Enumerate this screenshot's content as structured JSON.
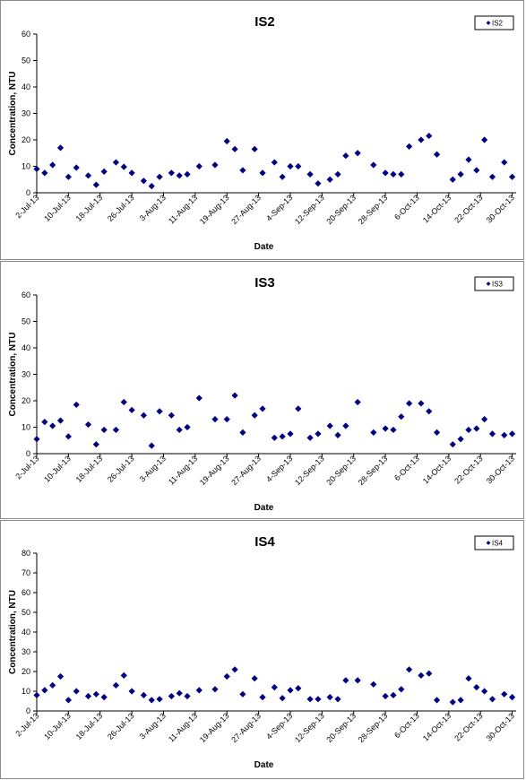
{
  "chart_data": [
    {
      "type": "scatter",
      "title": "IS2",
      "xlabel": "Date",
      "ylabel": "Concentration, NTU",
      "ylim": [
        0,
        60
      ],
      "yticks": [
        0,
        10,
        20,
        30,
        40,
        50,
        60
      ],
      "xlim": [
        "2013-07-02",
        "2013-10-31"
      ],
      "xticks": [
        "2-Jul-13",
        "10-Jul-13",
        "18-Jul-13",
        "26-Jul-13",
        "3-Aug-13",
        "11-Aug-13",
        "19-Aug-13",
        "27-Aug-13",
        "4-Sep-13",
        "12-Sep-13",
        "20-Sep-13",
        "28-Sep-13",
        "6-Oct-13",
        "14-Oct-13",
        "22-Oct-13",
        "30-Oct-13"
      ],
      "grid": false,
      "legend": "top-right",
      "marker_color": "#000080",
      "series": [
        {
          "name": "IS2",
          "x": [
            "2013-07-02",
            "2013-07-04",
            "2013-07-06",
            "2013-07-08",
            "2013-07-10",
            "2013-07-12",
            "2013-07-15",
            "2013-07-17",
            "2013-07-19",
            "2013-07-22",
            "2013-07-24",
            "2013-07-26",
            "2013-07-29",
            "2013-07-31",
            "2013-08-02",
            "2013-08-05",
            "2013-08-07",
            "2013-08-09",
            "2013-08-12",
            "2013-08-16",
            "2013-08-19",
            "2013-08-21",
            "2013-08-23",
            "2013-08-26",
            "2013-08-28",
            "2013-08-31",
            "2013-09-02",
            "2013-09-04",
            "2013-09-06",
            "2013-09-09",
            "2013-09-11",
            "2013-09-14",
            "2013-09-16",
            "2013-09-18",
            "2013-09-21",
            "2013-09-25",
            "2013-09-28",
            "2013-09-30",
            "2013-10-02",
            "2013-10-04",
            "2013-10-07",
            "2013-10-09",
            "2013-10-11",
            "2013-10-15",
            "2013-10-17",
            "2013-10-19",
            "2013-10-21",
            "2013-10-23",
            "2013-10-25",
            "2013-10-28",
            "2013-10-30"
          ],
          "y": [
            9,
            7.5,
            10.5,
            17,
            6,
            9.5,
            6.5,
            3,
            8,
            11.5,
            9.8,
            7.5,
            4.5,
            2.5,
            6,
            7.5,
            6.5,
            7,
            10,
            10.5,
            19.5,
            16.5,
            8.5,
            16.5,
            7.5,
            11.5,
            6,
            10,
            10,
            7,
            3.5,
            5,
            7,
            14,
            15,
            10.5,
            7.5,
            7,
            7,
            17.5,
            20,
            21.5,
            14.5,
            5,
            7,
            12.5,
            8.5,
            20,
            6,
            11.5,
            6
          ]
        }
      ]
    },
    {
      "type": "scatter",
      "title": "IS3",
      "xlabel": "Date",
      "ylabel": "Concentration, NTU",
      "ylim": [
        0,
        60
      ],
      "yticks": [
        0,
        10,
        20,
        30,
        40,
        50,
        60
      ],
      "xlim": [
        "2013-07-02",
        "2013-10-31"
      ],
      "xticks": [
        "2-Jul-13",
        "10-Jul-13",
        "18-Jul-13",
        "26-Jul-13",
        "3-Aug-13",
        "11-Aug-13",
        "19-Aug-13",
        "27-Aug-13",
        "4-Sep-13",
        "12-Sep-13",
        "20-Sep-13",
        "28-Sep-13",
        "6-Oct-13",
        "14-Oct-13",
        "22-Oct-13",
        "30-Oct-13"
      ],
      "grid": false,
      "legend": "top-right",
      "marker_color": "#000080",
      "series": [
        {
          "name": "IS3",
          "x": [
            "2013-07-02",
            "2013-07-04",
            "2013-07-06",
            "2013-07-08",
            "2013-07-10",
            "2013-07-12",
            "2013-07-15",
            "2013-07-17",
            "2013-07-19",
            "2013-07-22",
            "2013-07-24",
            "2013-07-26",
            "2013-07-29",
            "2013-07-31",
            "2013-08-02",
            "2013-08-05",
            "2013-08-07",
            "2013-08-09",
            "2013-08-12",
            "2013-08-16",
            "2013-08-19",
            "2013-08-21",
            "2013-08-23",
            "2013-08-26",
            "2013-08-28",
            "2013-08-31",
            "2013-09-02",
            "2013-09-04",
            "2013-09-06",
            "2013-09-09",
            "2013-09-11",
            "2013-09-14",
            "2013-09-16",
            "2013-09-18",
            "2013-09-21",
            "2013-09-25",
            "2013-09-28",
            "2013-09-30",
            "2013-10-02",
            "2013-10-04",
            "2013-10-07",
            "2013-10-09",
            "2013-10-11",
            "2013-10-15",
            "2013-10-17",
            "2013-10-19",
            "2013-10-21",
            "2013-10-23",
            "2013-10-25",
            "2013-10-28",
            "2013-10-30"
          ],
          "y": [
            5.5,
            12,
            10.5,
            12.5,
            6.5,
            18.5,
            11,
            3.5,
            9,
            9,
            19.5,
            16.5,
            14.5,
            3,
            16,
            14.5,
            9,
            10,
            21,
            13,
            13,
            22,
            8,
            14.5,
            17,
            6,
            6.5,
            7.5,
            17,
            6,
            7.5,
            10.5,
            7,
            10.5,
            19.5,
            8,
            9.5,
            9,
            14,
            19,
            19,
            16,
            8,
            3.5,
            5.5,
            9,
            9.5,
            13,
            7.5,
            7,
            7.5
          ]
        }
      ]
    },
    {
      "type": "scatter",
      "title": "IS4",
      "xlabel": "Date",
      "ylabel": "Concentration, NTU",
      "ylim": [
        0,
        80
      ],
      "yticks": [
        0,
        10,
        20,
        30,
        40,
        50,
        60,
        70,
        80
      ],
      "xlim": [
        "2013-07-02",
        "2013-10-31"
      ],
      "xticks": [
        "2-Jul-13",
        "10-Jul-13",
        "18-Jul-13",
        "26-Jul-13",
        "3-Aug-13",
        "11-Aug-13",
        "19-Aug-13",
        "27-Aug-13",
        "4-Sep-13",
        "12-Sep-13",
        "20-Sep-13",
        "28-Sep-13",
        "6-Oct-13",
        "14-Oct-13",
        "22-Oct-13",
        "30-Oct-13"
      ],
      "grid": false,
      "legend": "top-right",
      "marker_color": "#000080",
      "series": [
        {
          "name": "IS4",
          "x": [
            "2013-07-02",
            "2013-07-04",
            "2013-07-06",
            "2013-07-08",
            "2013-07-10",
            "2013-07-12",
            "2013-07-15",
            "2013-07-17",
            "2013-07-19",
            "2013-07-22",
            "2013-07-24",
            "2013-07-26",
            "2013-07-29",
            "2013-07-31",
            "2013-08-02",
            "2013-08-05",
            "2013-08-07",
            "2013-08-09",
            "2013-08-12",
            "2013-08-16",
            "2013-08-19",
            "2013-08-21",
            "2013-08-23",
            "2013-08-26",
            "2013-08-28",
            "2013-08-31",
            "2013-09-02",
            "2013-09-04",
            "2013-09-06",
            "2013-09-09",
            "2013-09-11",
            "2013-09-14",
            "2013-09-16",
            "2013-09-18",
            "2013-09-21",
            "2013-09-25",
            "2013-09-28",
            "2013-09-30",
            "2013-10-02",
            "2013-10-04",
            "2013-10-07",
            "2013-10-09",
            "2013-10-11",
            "2013-10-15",
            "2013-10-17",
            "2013-10-19",
            "2013-10-21",
            "2013-10-23",
            "2013-10-25",
            "2013-10-28",
            "2013-10-30"
          ],
          "y": [
            8,
            10.5,
            13,
            17.5,
            5.5,
            10,
            7.5,
            8.5,
            7,
            13,
            18,
            10,
            8,
            5.5,
            6,
            7.5,
            9,
            7.5,
            10.5,
            11,
            17.5,
            21,
            8.5,
            16.5,
            7,
            12,
            6.5,
            10.5,
            11.5,
            6,
            6,
            7,
            6,
            15.5,
            15.5,
            13.5,
            7.5,
            8,
            11,
            21,
            18,
            19,
            5.5,
            4.5,
            5.5,
            16.5,
            12,
            10,
            6,
            8.5,
            7
          ]
        }
      ]
    }
  ]
}
